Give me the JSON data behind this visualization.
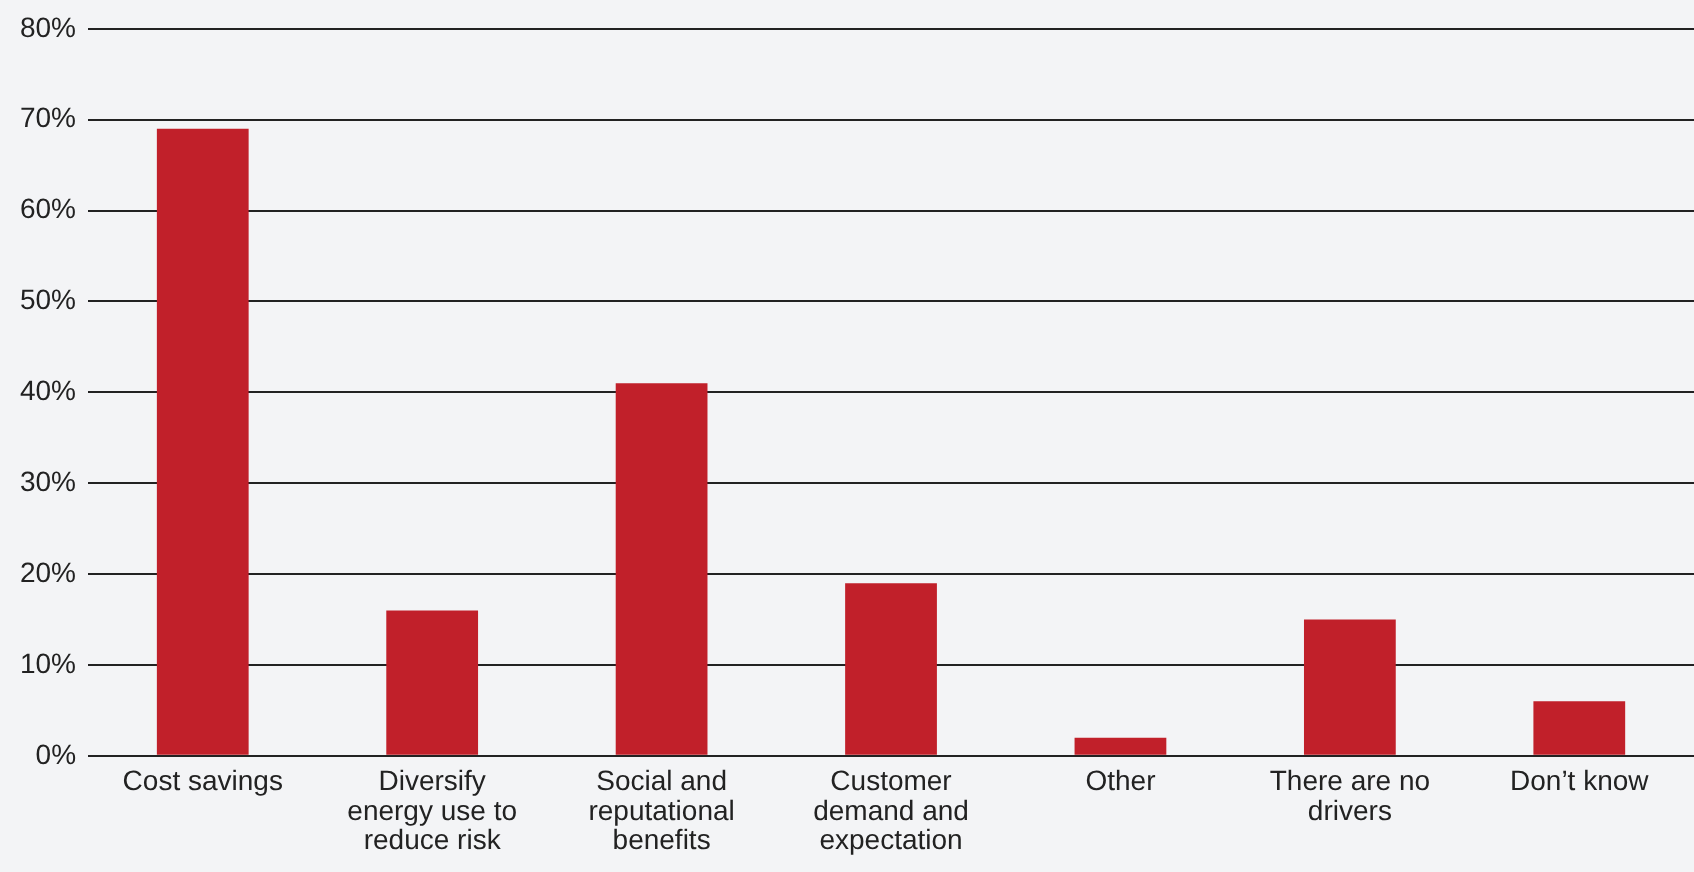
{
  "chart_data": {
    "type": "bar",
    "categories": [
      "Cost savings",
      "Diversify energy use to reduce risk",
      "Social and reputational benefits",
      "Customer demand and expectation",
      "Other",
      "There are no drivers",
      "Don’t know"
    ],
    "values": [
      69,
      16,
      41,
      19,
      2,
      15,
      6
    ],
    "color": "#c1202a",
    "ylim": [
      0,
      80
    ],
    "yticks": [
      {
        "value": 0,
        "label": "0%"
      },
      {
        "value": 10,
        "label": "10%"
      },
      {
        "value": 20,
        "label": "20%"
      },
      {
        "value": 30,
        "label": "30%"
      },
      {
        "value": 40,
        "label": "40%"
      },
      {
        "value": 50,
        "label": "50%"
      },
      {
        "value": 60,
        "label": "60%"
      },
      {
        "value": 70,
        "label": "70%"
      },
      {
        "value": 80,
        "label": "80%"
      }
    ],
    "grid": "y",
    "legend": false
  }
}
